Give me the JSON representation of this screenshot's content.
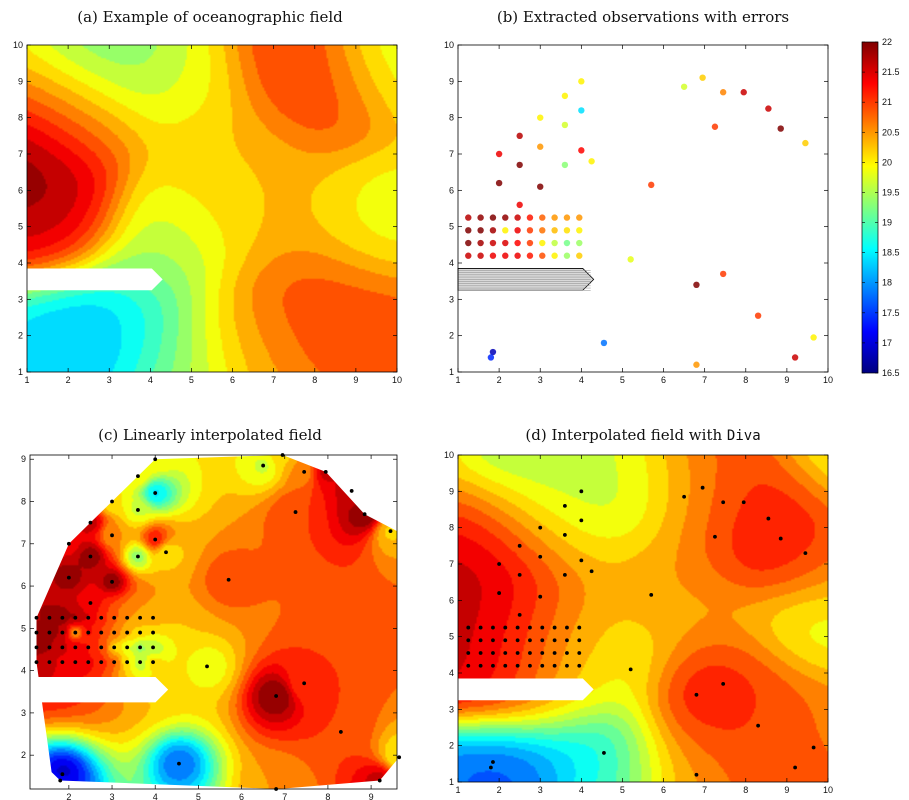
{
  "chart_data": [
    {
      "type": "heatmap",
      "panel": "a",
      "title": "(a) Example of oceanographic field",
      "xlim": [
        1,
        10
      ],
      "ylim": [
        1,
        10
      ],
      "xticks": [
        1,
        2,
        3,
        4,
        5,
        6,
        7,
        8,
        9,
        10
      ],
      "yticks": [
        1,
        2,
        3,
        4,
        5,
        6,
        7,
        8,
        9,
        10
      ],
      "land_mask": {
        "x": [
          1,
          4.3
        ],
        "y": [
          3.25,
          3.85
        ]
      },
      "field_peaks": [
        {
          "x": 1.0,
          "y": 6.4,
          "v": 22.3
        },
        {
          "x": 1.6,
          "y": 5.0,
          "v": 21.6
        },
        {
          "x": 2.3,
          "y": 8.0,
          "v": 20.8
        },
        {
          "x": 2.5,
          "y": 2.0,
          "v": 17.8
        },
        {
          "x": 1.5,
          "y": 1.6,
          "v": 18.3
        },
        {
          "x": 3.6,
          "y": 2.3,
          "v": 18.4
        },
        {
          "x": 4.7,
          "y": 1.5,
          "v": 19.3
        },
        {
          "x": 4.3,
          "y": 4.4,
          "v": 19.4
        },
        {
          "x": 5.0,
          "y": 9.0,
          "v": 19.8
        },
        {
          "x": 3.2,
          "y": 9.6,
          "v": 19.0
        },
        {
          "x": 6.0,
          "y": 7.0,
          "v": 20.3
        },
        {
          "x": 7.5,
          "y": 9.6,
          "v": 21.3
        },
        {
          "x": 8.2,
          "y": 8.6,
          "v": 21.0
        },
        {
          "x": 9.7,
          "y": 9.7,
          "v": 19.6
        },
        {
          "x": 9.4,
          "y": 5.2,
          "v": 19.8
        },
        {
          "x": 7.2,
          "y": 5.5,
          "v": 20.4
        },
        {
          "x": 7.9,
          "y": 3.1,
          "v": 21.0
        },
        {
          "x": 9.3,
          "y": 2.2,
          "v": 21.0
        },
        {
          "x": 6.2,
          "y": 2.0,
          "v": 20.6
        },
        {
          "x": 5.6,
          "y": 5.6,
          "v": 20.0
        }
      ]
    },
    {
      "type": "scatter",
      "panel": "b",
      "title": "(b) Extracted observations with errors",
      "xlim": [
        1,
        10
      ],
      "ylim": [
        1,
        10
      ],
      "xticks": [
        1,
        2,
        3,
        4,
        5,
        6,
        7,
        8,
        9,
        10
      ],
      "yticks": [
        1,
        2,
        3,
        4,
        5,
        6,
        7,
        8,
        9,
        10
      ],
      "land_mask": {
        "x": [
          1,
          4.3
        ],
        "y": [
          3.25,
          3.85
        ]
      },
      "points": [
        {
          "x": 1.85,
          "y": 1.55,
          "v": 16.8
        },
        {
          "x": 1.8,
          "y": 1.4,
          "v": 17.4
        },
        {
          "x": 4.55,
          "y": 1.8,
          "v": 17.8
        },
        {
          "x": 6.8,
          "y": 1.2,
          "v": 20.5
        },
        {
          "x": 9.2,
          "y": 1.4,
          "v": 21.6
        },
        {
          "x": 9.65,
          "y": 1.95,
          "v": 20.0
        },
        {
          "x": 8.3,
          "y": 2.55,
          "v": 21.0
        },
        {
          "x": 6.8,
          "y": 3.4,
          "v": 22.0
        },
        {
          "x": 7.45,
          "y": 3.7,
          "v": 21.0
        },
        {
          "x": 5.2,
          "y": 4.1,
          "v": 19.8
        },
        {
          "x": 5.7,
          "y": 6.15,
          "v": 21.0
        },
        {
          "x": 4.25,
          "y": 6.8,
          "v": 20.0
        },
        {
          "x": 4.0,
          "y": 7.1,
          "v": 21.3
        },
        {
          "x": 3.6,
          "y": 6.7,
          "v": 19.3
        },
        {
          "x": 3.6,
          "y": 7.8,
          "v": 19.7
        },
        {
          "x": 3.6,
          "y": 8.6,
          "v": 20.0
        },
        {
          "x": 4.0,
          "y": 8.2,
          "v": 18.4
        },
        {
          "x": 4.0,
          "y": 9.0,
          "v": 20.0
        },
        {
          "x": 3.0,
          "y": 8.0,
          "v": 20.0
        },
        {
          "x": 3.0,
          "y": 7.2,
          "v": 20.5
        },
        {
          "x": 3.0,
          "y": 6.1,
          "v": 22.0
        },
        {
          "x": 2.5,
          "y": 7.5,
          "v": 21.7
        },
        {
          "x": 2.5,
          "y": 6.7,
          "v": 22.0
        },
        {
          "x": 2.5,
          "y": 5.6,
          "v": 21.4
        },
        {
          "x": 2.0,
          "y": 7.0,
          "v": 21.4
        },
        {
          "x": 2.0,
          "y": 6.2,
          "v": 22.0
        },
        {
          "x": 6.5,
          "y": 8.85,
          "v": 19.7
        },
        {
          "x": 6.95,
          "y": 9.1,
          "v": 20.2
        },
        {
          "x": 7.45,
          "y": 8.7,
          "v": 20.6
        },
        {
          "x": 7.95,
          "y": 8.7,
          "v": 21.6
        },
        {
          "x": 8.55,
          "y": 8.25,
          "v": 21.6
        },
        {
          "x": 7.25,
          "y": 7.75,
          "v": 21.0
        },
        {
          "x": 8.85,
          "y": 7.7,
          "v": 22.0
        },
        {
          "x": 9.45,
          "y": 7.3,
          "v": 20.2
        },
        {
          "x": 1.25,
          "y": 5.25,
          "v": 21.7
        },
        {
          "x": 1.55,
          "y": 5.25,
          "v": 21.9
        },
        {
          "x": 1.85,
          "y": 5.25,
          "v": 22.0
        },
        {
          "x": 2.15,
          "y": 5.25,
          "v": 21.9
        },
        {
          "x": 2.45,
          "y": 5.25,
          "v": 21.6
        },
        {
          "x": 2.75,
          "y": 5.25,
          "v": 21.2
        },
        {
          "x": 3.05,
          "y": 5.25,
          "v": 20.8
        },
        {
          "x": 3.35,
          "y": 5.25,
          "v": 20.5
        },
        {
          "x": 3.65,
          "y": 5.25,
          "v": 20.5
        },
        {
          "x": 3.95,
          "y": 5.25,
          "v": 20.5
        },
        {
          "x": 1.25,
          "y": 4.9,
          "v": 22.0
        },
        {
          "x": 1.55,
          "y": 4.9,
          "v": 22.0
        },
        {
          "x": 1.85,
          "y": 4.9,
          "v": 21.8
        },
        {
          "x": 2.15,
          "y": 4.9,
          "v": 20.0
        },
        {
          "x": 2.45,
          "y": 4.9,
          "v": 21.4
        },
        {
          "x": 2.75,
          "y": 4.9,
          "v": 21.0
        },
        {
          "x": 3.05,
          "y": 4.9,
          "v": 20.7
        },
        {
          "x": 3.35,
          "y": 4.9,
          "v": 20.3
        },
        {
          "x": 3.65,
          "y": 4.9,
          "v": 20.1
        },
        {
          "x": 3.95,
          "y": 4.9,
          "v": 20.0
        },
        {
          "x": 1.25,
          "y": 4.55,
          "v": 22.0
        },
        {
          "x": 1.55,
          "y": 4.55,
          "v": 21.8
        },
        {
          "x": 1.85,
          "y": 4.55,
          "v": 21.6
        },
        {
          "x": 2.15,
          "y": 4.55,
          "v": 21.5
        },
        {
          "x": 2.45,
          "y": 4.55,
          "v": 21.3
        },
        {
          "x": 2.75,
          "y": 4.55,
          "v": 21.0
        },
        {
          "x": 3.05,
          "y": 4.55,
          "v": 20.0
        },
        {
          "x": 3.35,
          "y": 4.55,
          "v": 19.6
        },
        {
          "x": 3.65,
          "y": 4.55,
          "v": 19.2
        },
        {
          "x": 3.95,
          "y": 4.55,
          "v": 19.4
        },
        {
          "x": 1.25,
          "y": 4.2,
          "v": 21.6
        },
        {
          "x": 1.55,
          "y": 4.2,
          "v": 21.6
        },
        {
          "x": 1.85,
          "y": 4.2,
          "v": 21.4
        },
        {
          "x": 2.15,
          "y": 4.2,
          "v": 21.4
        },
        {
          "x": 2.45,
          "y": 4.2,
          "v": 21.4
        },
        {
          "x": 2.75,
          "y": 4.2,
          "v": 21.2
        },
        {
          "x": 3.05,
          "y": 4.2,
          "v": 20.9
        },
        {
          "x": 3.35,
          "y": 4.2,
          "v": 20.0
        },
        {
          "x": 3.65,
          "y": 4.2,
          "v": 19.4
        },
        {
          "x": 3.95,
          "y": 4.2,
          "v": 20.2
        }
      ]
    },
    {
      "type": "heatmap",
      "panel": "c",
      "title": "(c) Linearly interpolated field",
      "xlim": [
        1.1,
        9.6
      ],
      "ylim": [
        1.2,
        9.1
      ],
      "xticks": [
        2,
        3,
        4,
        5,
        6,
        7,
        8,
        9
      ],
      "yticks": [
        2,
        3,
        4,
        5,
        6,
        7,
        8,
        9
      ],
      "land_mask": {
        "x": [
          1,
          4.3
        ],
        "y": [
          3.25,
          3.85
        ]
      },
      "convex_hull": [
        [
          1.8,
          1.4
        ],
        [
          6.85,
          1.2
        ],
        [
          9.2,
          1.4
        ],
        [
          9.65,
          1.95
        ],
        [
          9.6,
          7.3
        ],
        [
          8.85,
          7.7
        ],
        [
          7.95,
          8.7
        ],
        [
          6.95,
          9.1
        ],
        [
          4.0,
          9.0
        ],
        [
          3.0,
          8.0
        ],
        [
          2.5,
          7.5
        ],
        [
          2.0,
          7.0
        ],
        [
          1.25,
          5.25
        ],
        [
          1.25,
          4.2
        ],
        [
          1.6,
          1.6
        ]
      ],
      "uses_observations_of": "b"
    },
    {
      "type": "heatmap",
      "panel": "d",
      "title_prefix": "(d) Interpolated field with ",
      "title_code": "Diva",
      "xlim": [
        1,
        10
      ],
      "ylim": [
        1,
        10
      ],
      "xticks": [
        1,
        2,
        3,
        4,
        5,
        6,
        7,
        8,
        9,
        10
      ],
      "yticks": [
        1,
        2,
        3,
        4,
        5,
        6,
        7,
        8,
        9,
        10
      ],
      "land_mask": {
        "x": [
          1,
          4.3
        ],
        "y": [
          3.25,
          3.85
        ]
      },
      "uses_observations_of": "b"
    }
  ],
  "colorbar": {
    "min": 16.5,
    "max": 22.0,
    "ticks": [
      "16.5",
      "17",
      "17.5",
      "18",
      "18.5",
      "19",
      "19.5",
      "20",
      "20.5",
      "21",
      "21.5",
      "22"
    ]
  }
}
